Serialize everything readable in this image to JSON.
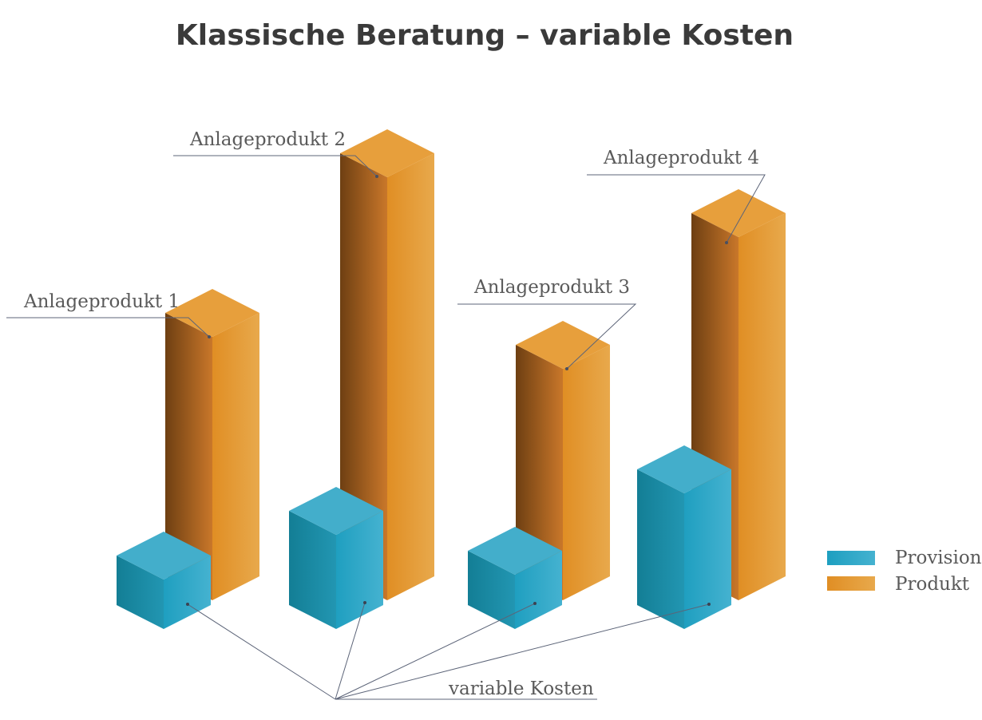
{
  "chart_data": {
    "type": "bar",
    "style": "3d-isometric-stacked",
    "title": "Klassische Beratung – variable Kosten",
    "categories": [
      "Anlageprodukt 1",
      "Anlageprodukt 2",
      "Anlageprodukt 3",
      "Anlageprodukt 4"
    ],
    "series": [
      {
        "name": "Provision",
        "values": [
          62,
          118,
          68,
          170
        ],
        "color": "#2ba7c6"
      },
      {
        "name": "Produkt",
        "values": [
          330,
          530,
          290,
          455
        ],
        "color": "#e59a33"
      }
    ],
    "annotation": "variable Kosten",
    "legend_position": "right",
    "grid": false,
    "axes_visible": false
  }
}
